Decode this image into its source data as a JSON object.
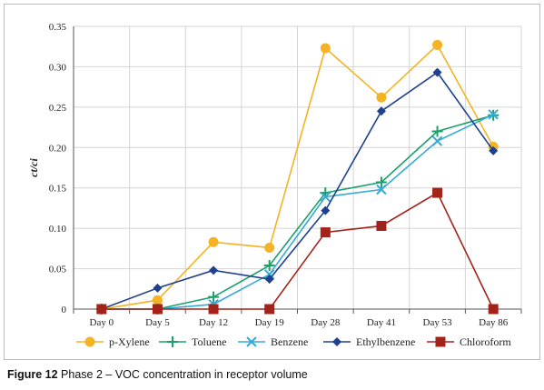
{
  "chart_data": {
    "type": "line",
    "title": "",
    "ylabel": "ct/ci",
    "xlabel": "",
    "categories": [
      "Day 0",
      "Day 5",
      "Day 12",
      "Day 19",
      "Day 28",
      "Day 41",
      "Day 53",
      "Day 86"
    ],
    "ylim": [
      0,
      0.35
    ],
    "yticks": [
      "0",
      "0.05",
      "0.10",
      "0.15",
      "0.20",
      "0.25",
      "0.30",
      "0.35"
    ],
    "grid": true,
    "legend_position": "bottom",
    "series": [
      {
        "name": "p-Xylene",
        "color": "#f5b324",
        "marker": "circle",
        "values": [
          0,
          0.011,
          0.083,
          0.076,
          0.323,
          0.262,
          0.327,
          0.201
        ]
      },
      {
        "name": "Toluene",
        "color": "#1aa06a",
        "marker": "plus",
        "values": [
          0,
          0,
          0.015,
          0.054,
          0.144,
          0.157,
          0.22,
          0.24
        ]
      },
      {
        "name": "Benzene",
        "color": "#36a9d6",
        "marker": "x",
        "values": [
          0,
          0,
          0.006,
          0.043,
          0.139,
          0.148,
          0.208,
          0.241
        ]
      },
      {
        "name": "Ethylbenzene",
        "color": "#1f3f8f",
        "marker": "diamond",
        "values": [
          0,
          0.026,
          0.048,
          0.037,
          0.122,
          0.245,
          0.293,
          0.196
        ]
      },
      {
        "name": "Chloroform",
        "color": "#a3231b",
        "marker": "square",
        "values": [
          0,
          0,
          0,
          0,
          0.095,
          0.103,
          0.144,
          0
        ]
      }
    ]
  },
  "caption": {
    "label": "Figure 12",
    "text": " Phase 2 – VOC concentration in receptor volume"
  }
}
